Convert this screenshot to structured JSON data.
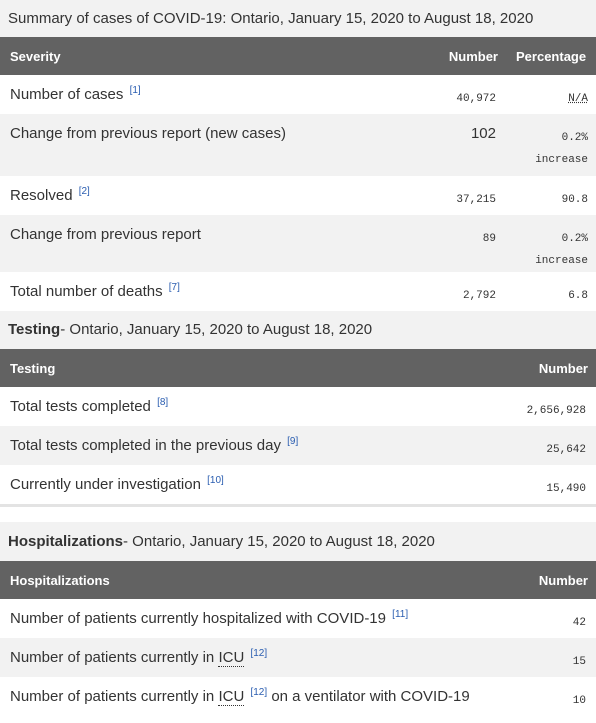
{
  "sections": {
    "cases": {
      "caption": "Summary of cases of COVID-19: Ontario, January 15, 2020 to August 18, 2020",
      "headers": [
        "Severity",
        "Number",
        "Percentage"
      ],
      "rows": [
        {
          "label": "Number of cases",
          "ref": "[1]",
          "number": "40,972",
          "percent": "N/A"
        },
        {
          "label": "Change from previous report (new cases)",
          "ref": "",
          "number": "102",
          "percent": "0.2%",
          "percent2": "increase"
        },
        {
          "label": "Resolved",
          "ref": "[2]",
          "number": "37,215",
          "percent": "90.8"
        },
        {
          "label": "Change from previous report",
          "ref": "",
          "number": "89",
          "percent": "0.2%",
          "percent2": "increase"
        },
        {
          "label": "Total number of deaths",
          "ref": "[7]",
          "number": "2,792",
          "percent": "6.8"
        }
      ]
    },
    "testing": {
      "caption_lead": "Testing",
      "caption_rest": " - Ontario, January 15, 2020 to August 18, 2020",
      "headers": [
        "Testing",
        "Number"
      ],
      "rows": [
        {
          "label": "Total tests completed",
          "ref": "[8]",
          "number": "2,656,928"
        },
        {
          "label": "Total tests completed in the previous day",
          "ref": "[9]",
          "number": "25,642"
        },
        {
          "label": "Currently under investigation",
          "ref": "[10]",
          "number": "15,490"
        }
      ]
    },
    "hospitalizations": {
      "caption_lead": "Hospitalizations",
      "caption_rest": " - Ontario, January 15, 2020 to August 18, 2020",
      "headers": [
        "Hospitalizations",
        "Number"
      ],
      "rows": [
        {
          "label": "Number of patients currently hospitalized with COVID-19",
          "ref": "[11]",
          "number": "42"
        },
        {
          "label": "Number of patients currently in",
          "abbr": "ICU",
          "ref": "[12]",
          "number": "15"
        },
        {
          "label": "Number of patients currently in",
          "abbr": "ICU",
          "ref": "[12]",
          "tail": "on a ventilator with COVID-19",
          "number": "10"
        }
      ]
    }
  }
}
